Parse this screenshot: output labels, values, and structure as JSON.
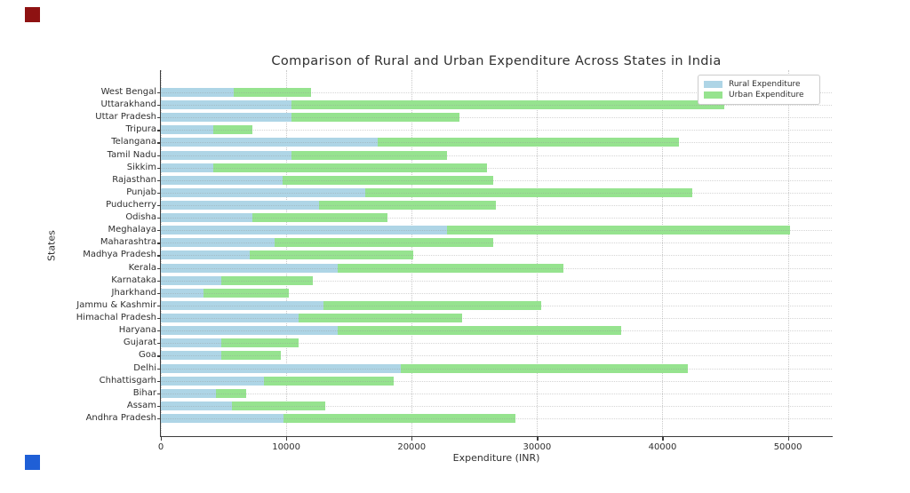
{
  "window": {
    "background_color": "#ffffff",
    "markers": {
      "top_left_color": "#8e1212",
      "bottom_left_color": "#1f5fd6"
    }
  },
  "chart_data": {
    "type": "bar",
    "orientation": "horizontal",
    "stacked": true,
    "title": "Comparison of Rural and Urban Expenditure Across States in India",
    "xlabel": "Expenditure (INR)",
    "ylabel": "States",
    "xlim": [
      0,
      53500
    ],
    "xticks": [
      0,
      10000,
      20000,
      30000,
      40000,
      50000
    ],
    "grid": true,
    "legend_position": "upper right",
    "categories": [
      "West Bengal",
      "Uttarakhand",
      "Uttar Pradesh",
      "Tripura",
      "Telangana",
      "Tamil Nadu",
      "Sikkim",
      "Rajasthan",
      "Punjab",
      "Puducherry",
      "Odisha",
      "Meghalaya",
      "Maharashtra",
      "Madhya Pradesh",
      "Kerala",
      "Karnataka",
      "Jharkhand",
      "Jammu & Kashmir",
      "Himachal Pradesh",
      "Haryana",
      "Gujarat",
      "Goa",
      "Delhi",
      "Chhattisgarh",
      "Bihar",
      "Assam",
      "Andhra Pradesh"
    ],
    "series": [
      {
        "name": "Rural Expenditure",
        "color": "#aed5e6",
        "values": [
          5800,
          10400,
          10400,
          4200,
          17300,
          10400,
          4200,
          9700,
          16300,
          12600,
          7300,
          22800,
          9100,
          7100,
          14100,
          4800,
          3400,
          13000,
          11000,
          14100,
          4800,
          4800,
          19100,
          8200,
          4400,
          5700,
          9800
        ]
      },
      {
        "name": "Urban Expenditure",
        "color": "#96e38f",
        "values": [
          6200,
          34500,
          13400,
          3100,
          24000,
          12400,
          21800,
          16800,
          26100,
          14100,
          10800,
          27400,
          17400,
          13000,
          18000,
          7300,
          6800,
          17300,
          13000,
          22600,
          6200,
          4800,
          22900,
          10400,
          2400,
          7400,
          18500
        ]
      }
    ]
  },
  "legend": {
    "items": [
      {
        "label": "Rural Expenditure",
        "color": "#aed5e6"
      },
      {
        "label": "Urban Expenditure",
        "color": "#96e38f"
      }
    ]
  }
}
